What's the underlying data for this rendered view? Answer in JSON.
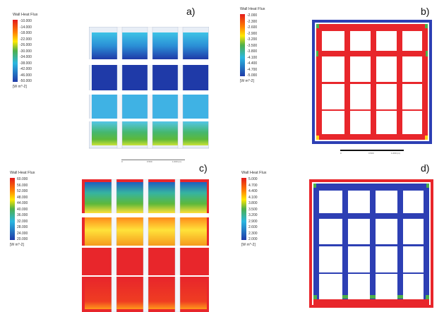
{
  "panels": [
    {
      "id": "a",
      "label": "a)",
      "legend_title": "Wall Heat Flux",
      "unit": "[W m^-2]",
      "ticks": [
        "-10.000",
        "-14.000",
        "-18.000",
        "-22.000",
        "-26.000",
        "-30.000",
        "-34.000",
        "-38.000",
        "-42.000",
        "-46.000",
        "-50.000"
      ],
      "colormap": "rainbow-reversed"
    },
    {
      "id": "b",
      "label": "b)",
      "legend_title": "Wall Heat Flux",
      "unit": "[W m^-2]",
      "ticks": [
        "-2.000",
        "-2.300",
        "-2.600",
        "-2.900",
        "-3.200",
        "-3.500",
        "-3.800",
        "-4.100",
        "-4.400",
        "-4.700",
        "-5.000"
      ],
      "colormap": "rainbow-reversed"
    },
    {
      "id": "c",
      "label": "c)",
      "legend_title": "Wall Heat Flux",
      "unit": "[W m^-2]",
      "ticks": [
        "60.000",
        "56.000",
        "52.000",
        "48.000",
        "44.000",
        "40.000",
        "36.000",
        "32.000",
        "28.000",
        "24.000",
        "20.000"
      ],
      "colormap": "rainbow"
    },
    {
      "id": "d",
      "label": "d)",
      "legend_title": "Wall Heat Flux",
      "unit": "[W m^-2]",
      "ticks": [
        "5.000",
        "4.700",
        "4.400",
        "4.100",
        "3.800",
        "3.500",
        "3.200",
        "2.900",
        "2.600",
        "2.300",
        "2.000"
      ],
      "colormap": "rainbow"
    }
  ],
  "scale_bars": [
    {
      "labels": [
        "0",
        "0.500",
        "1.000 (m)"
      ]
    },
    {
      "labels": [
        "0",
        "0.500",
        "1.000 (m)"
      ]
    }
  ]
}
